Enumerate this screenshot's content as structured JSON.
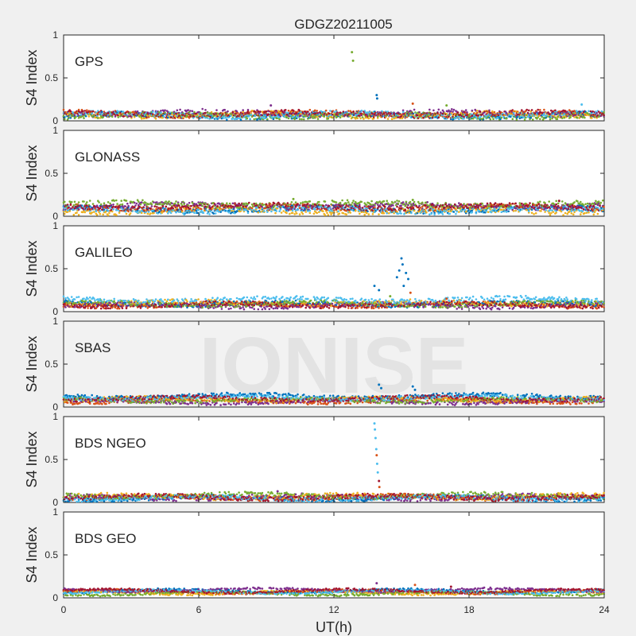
{
  "chart_data": {
    "type": "scatter",
    "title": "GDGZ20211005",
    "xlabel": "UT(h)",
    "ylabel": "S4 Index",
    "xlim": [
      0,
      24
    ],
    "ylim": [
      0,
      1
    ],
    "xticks": [
      "0",
      "6",
      "12",
      "18",
      "24"
    ],
    "yticks": [
      "0",
      "0.5",
      "1"
    ],
    "watermark": "IONISE",
    "colors": [
      "#0072bd",
      "#d95319",
      "#edb120",
      "#7e2f8e",
      "#77ac30",
      "#4dbeee",
      "#a2142f"
    ],
    "panels": [
      {
        "name": "GPS",
        "baseline": [
          0.06,
          0.08,
          0.07,
          0.09,
          0.06,
          0.07,
          0.08
        ],
        "noise": 0.03,
        "spikes": [
          {
            "x": 12.8,
            "y": 0.8,
            "c": 4
          },
          {
            "x": 12.85,
            "y": 0.7,
            "c": 4
          },
          {
            "x": 13.9,
            "y": 0.3,
            "c": 0
          },
          {
            "x": 13.92,
            "y": 0.26,
            "c": 0
          },
          {
            "x": 15.5,
            "y": 0.2,
            "c": 1
          },
          {
            "x": 17.0,
            "y": 0.18,
            "c": 4
          },
          {
            "x": 9.2,
            "y": 0.18,
            "c": 3
          },
          {
            "x": 23.0,
            "y": 0.19,
            "c": 5
          }
        ]
      },
      {
        "name": "GLONASS",
        "baseline": [
          0.08,
          0.1,
          0.06,
          0.12,
          0.14,
          0.07,
          0.11
        ],
        "noise": 0.03,
        "spikes": [
          {
            "x": 10.2,
            "y": 0.2,
            "c": 4
          },
          {
            "x": 15.5,
            "y": 0.19,
            "c": 4
          },
          {
            "x": 22.0,
            "y": 0.18,
            "c": 6
          }
        ]
      },
      {
        "name": "GALILEO",
        "baseline": [
          0.09,
          0.08,
          0.1,
          0.07,
          0.09,
          0.14,
          0.08
        ],
        "noise": 0.025,
        "spikes": [
          {
            "x": 15.0,
            "y": 0.62,
            "c": 0
          },
          {
            "x": 15.05,
            "y": 0.55,
            "c": 0
          },
          {
            "x": 14.9,
            "y": 0.48,
            "c": 0
          },
          {
            "x": 15.2,
            "y": 0.45,
            "c": 0
          },
          {
            "x": 15.3,
            "y": 0.38,
            "c": 0
          },
          {
            "x": 14.8,
            "y": 0.4,
            "c": 0
          },
          {
            "x": 13.8,
            "y": 0.3,
            "c": 0
          },
          {
            "x": 14.0,
            "y": 0.25,
            "c": 0
          },
          {
            "x": 15.4,
            "y": 0.22,
            "c": 1
          },
          {
            "x": 14.5,
            "y": 0.18,
            "c": 4
          },
          {
            "x": 17.0,
            "y": 0.15,
            "c": 1
          },
          {
            "x": 15.1,
            "y": 0.3,
            "c": 0
          }
        ]
      },
      {
        "name": "SBAS",
        "baseline": [
          0.13,
          0.07,
          0.09,
          0.06,
          0.08,
          0.11,
          0.1
        ],
        "noise": 0.02,
        "spikes": [
          {
            "x": 14.0,
            "y": 0.26,
            "c": 0
          },
          {
            "x": 15.5,
            "y": 0.24,
            "c": 0
          },
          {
            "x": 14.1,
            "y": 0.22,
            "c": 0
          },
          {
            "x": 15.6,
            "y": 0.2,
            "c": 0
          }
        ]
      },
      {
        "name": "BDS NGEO",
        "baseline": [
          0.05,
          0.06,
          0.07,
          0.06,
          0.08,
          0.05,
          0.06
        ],
        "noise": 0.025,
        "spikes": [
          {
            "x": 13.8,
            "y": 0.92,
            "c": 5
          },
          {
            "x": 13.82,
            "y": 0.85,
            "c": 5
          },
          {
            "x": 13.85,
            "y": 0.75,
            "c": 5
          },
          {
            "x": 13.88,
            "y": 0.62,
            "c": 5
          },
          {
            "x": 13.9,
            "y": 0.55,
            "c": 1
          },
          {
            "x": 13.92,
            "y": 0.45,
            "c": 5
          },
          {
            "x": 13.95,
            "y": 0.35,
            "c": 5
          },
          {
            "x": 14.0,
            "y": 0.25,
            "c": 6
          },
          {
            "x": 14.02,
            "y": 0.18,
            "c": 1
          },
          {
            "x": 9.5,
            "y": 0.13,
            "c": 3
          }
        ]
      },
      {
        "name": "BDS GEO",
        "baseline": [
          0.08,
          0.07,
          0.06,
          0.09,
          0.05,
          0.07,
          0.08
        ],
        "noise": 0.012,
        "spikes": [
          {
            "x": 13.9,
            "y": 0.17,
            "c": 3
          },
          {
            "x": 15.6,
            "y": 0.15,
            "c": 1
          },
          {
            "x": 17.2,
            "y": 0.13,
            "c": 6
          }
        ]
      }
    ]
  }
}
